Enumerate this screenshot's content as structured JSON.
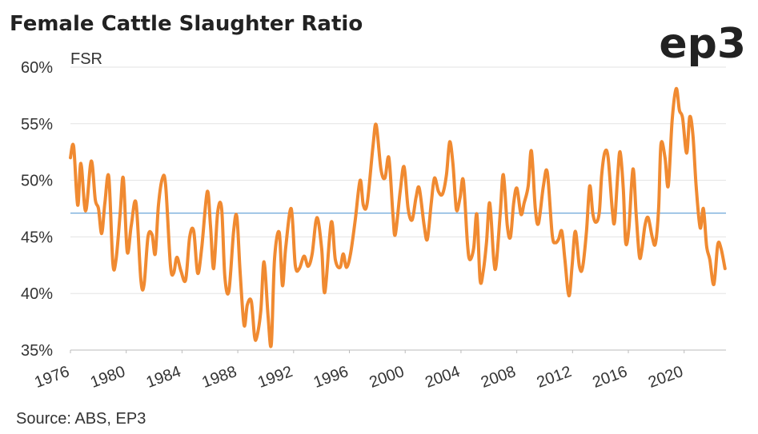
{
  "chart_data": {
    "type": "line",
    "title": "Female Cattle Slaughter Ratio",
    "logo": "ep3",
    "y_label": "FSR",
    "source": "Source: ABS, EP3",
    "x": [
      1976.0,
      1976.23,
      1976.52,
      1976.75,
      1977.09,
      1977.49,
      1977.78,
      1978.01,
      1978.24,
      1978.47,
      1978.75,
      1979.04,
      1979.27,
      1979.56,
      1979.79,
      1980.07,
      1980.36,
      1980.7,
      1981.05,
      1981.28,
      1981.56,
      1981.85,
      1982.08,
      1982.31,
      1982.6,
      1982.83,
      1983.17,
      1983.4,
      1983.63,
      1983.92,
      1984.26,
      1984.55,
      1984.84,
      1985.12,
      1985.41,
      1985.81,
      1986.04,
      1986.27,
      1986.56,
      1986.84,
      1987.07,
      1987.36,
      1987.7,
      1987.93,
      1988.16,
      1988.45,
      1988.68,
      1988.97,
      1989.2,
      1989.37,
      1989.65,
      1989.88,
      1990.17,
      1990.4,
      1990.63,
      1990.97,
      1991.2,
      1991.43,
      1991.83,
      1992.12,
      1992.41,
      1992.75,
      1993.04,
      1993.33,
      1993.67,
      1994.01,
      1994.24,
      1994.7,
      1994.99,
      1995.33,
      1995.56,
      1995.79,
      1996.08,
      1996.42,
      1996.77,
      1997.0,
      1997.28,
      1997.69,
      1997.92,
      1998.26,
      1998.55,
      1998.83,
      1999.12,
      1999.29,
      1999.64,
      1999.92,
      2000.21,
      2000.5,
      2000.78,
      2001.01,
      2001.36,
      2001.59,
      2001.87,
      2002.1,
      2002.39,
      2002.68,
      2002.96,
      2003.19,
      2003.42,
      2003.59,
      2003.71,
      2003.94,
      2004.17,
      2004.46,
      2004.63,
      2004.91,
      2005.14,
      2005.37,
      2005.6,
      2005.83,
      2006.06,
      2006.35,
      2006.52,
      2006.81,
      2007.04,
      2007.32,
      2007.55,
      2007.78,
      2008.01,
      2008.3,
      2008.53,
      2008.82,
      2009.05,
      2009.33,
      2009.56,
      2009.91,
      2010.19,
      2010.54,
      2010.77,
      2011.0,
      2011.23,
      2011.45,
      2011.74,
      2011.97,
      2012.2,
      2012.49,
      2012.72,
      2013.0,
      2013.23,
      2013.46,
      2013.69,
      2013.92,
      2014.09,
      2014.32,
      2014.55,
      2014.84,
      2015.01,
      2015.24,
      2015.41,
      2015.64,
      2015.81,
      2016.04,
      2016.33,
      2016.56,
      2016.79,
      2016.96,
      2017.19,
      2017.42,
      2017.71,
      2017.94,
      2018.17,
      2018.34,
      2018.63,
      2018.86,
      2019.14,
      2019.43,
      2019.66,
      2019.89,
      2020.18,
      2020.4,
      2020.63,
      2020.86,
      2021.15,
      2021.38,
      2021.61,
      2021.84,
      2022.13,
      2022.41,
      2022.64,
      2022.93
    ],
    "series": [
      {
        "name": "FSR",
        "color": "#f08a31",
        "values": [
          52,
          53,
          47.8,
          51.5,
          47.3,
          51.7,
          48.3,
          47.5,
          45.3,
          48,
          50.3,
          42.7,
          43,
          47,
          50.2,
          43.7,
          46,
          48,
          41.2,
          40.8,
          45,
          45.2,
          43.5,
          47.8,
          50.2,
          49.5,
          42.5,
          41.8,
          43.2,
          42,
          41.2,
          45,
          45.5,
          41.8,
          44,
          49,
          46,
          42.2,
          47.2,
          47.5,
          41.5,
          40.2,
          45.5,
          46.8,
          42,
          37.2,
          39,
          39.3,
          36.2,
          36.2,
          38.5,
          42.8,
          38,
          35.5,
          43,
          45.4,
          40.7,
          44,
          47.5,
          42.5,
          42.2,
          43.3,
          42.4,
          43.5,
          46.7,
          44,
          40.1,
          46.3,
          43,
          42.3,
          43.5,
          42.3,
          43.5,
          46.5,
          50,
          47.8,
          48,
          53,
          54.9,
          51,
          50.2,
          52,
          47,
          45.2,
          49,
          51.2,
          47.5,
          46.5,
          48.5,
          49.3,
          46,
          44.8,
          48,
          50.2,
          49,
          48.8,
          50.5,
          53.4,
          51.5,
          48.5,
          47.3,
          48.5,
          50,
          44.5,
          43,
          44,
          47,
          41.2,
          42,
          44.5,
          48,
          43,
          42.5,
          47,
          50.5,
          46,
          45,
          48,
          49.3,
          47,
          48,
          49.5,
          52.6,
          47.5,
          46.2,
          49.5,
          50.7,
          45.2,
          44.5,
          44.8,
          45.5,
          43,
          39.8,
          42.5,
          45.5,
          42.4,
          42.3,
          45.5,
          49.5,
          47,
          46.3,
          47.2,
          50.5,
          52.5,
          52,
          47.5,
          46.3,
          50.5,
          52.5,
          49.2,
          44.5,
          45.8,
          51,
          47,
          43.3,
          43.8,
          46,
          46.7,
          45,
          44.4,
          47.5,
          53.2,
          52,
          49.5,
          55.3,
          58.1,
          56.2,
          55.5,
          52.4,
          55.6,
          54,
          49.5,
          45.8,
          47.5,
          44.2,
          43,
          40.8,
          44.3,
          44,
          42.2
        ]
      }
    ],
    "reference_line": {
      "value": 47.1,
      "color": "#5b9bd5"
    },
    "xlim": [
      1976,
      2023
    ],
    "xticks": [
      1976,
      1980,
      1984,
      1988,
      1992,
      1996,
      2000,
      2004,
      2008,
      2012,
      2016,
      2020
    ],
    "ylim": [
      35,
      60
    ],
    "yticks": [
      {
        "value": 35,
        "label": "35%"
      },
      {
        "value": 40,
        "label": "40%"
      },
      {
        "value": 45,
        "label": "45%"
      },
      {
        "value": 50,
        "label": "50%"
      },
      {
        "value": 55,
        "label": "55%"
      },
      {
        "value": 60,
        "label": "60%"
      }
    ],
    "grid": true
  }
}
